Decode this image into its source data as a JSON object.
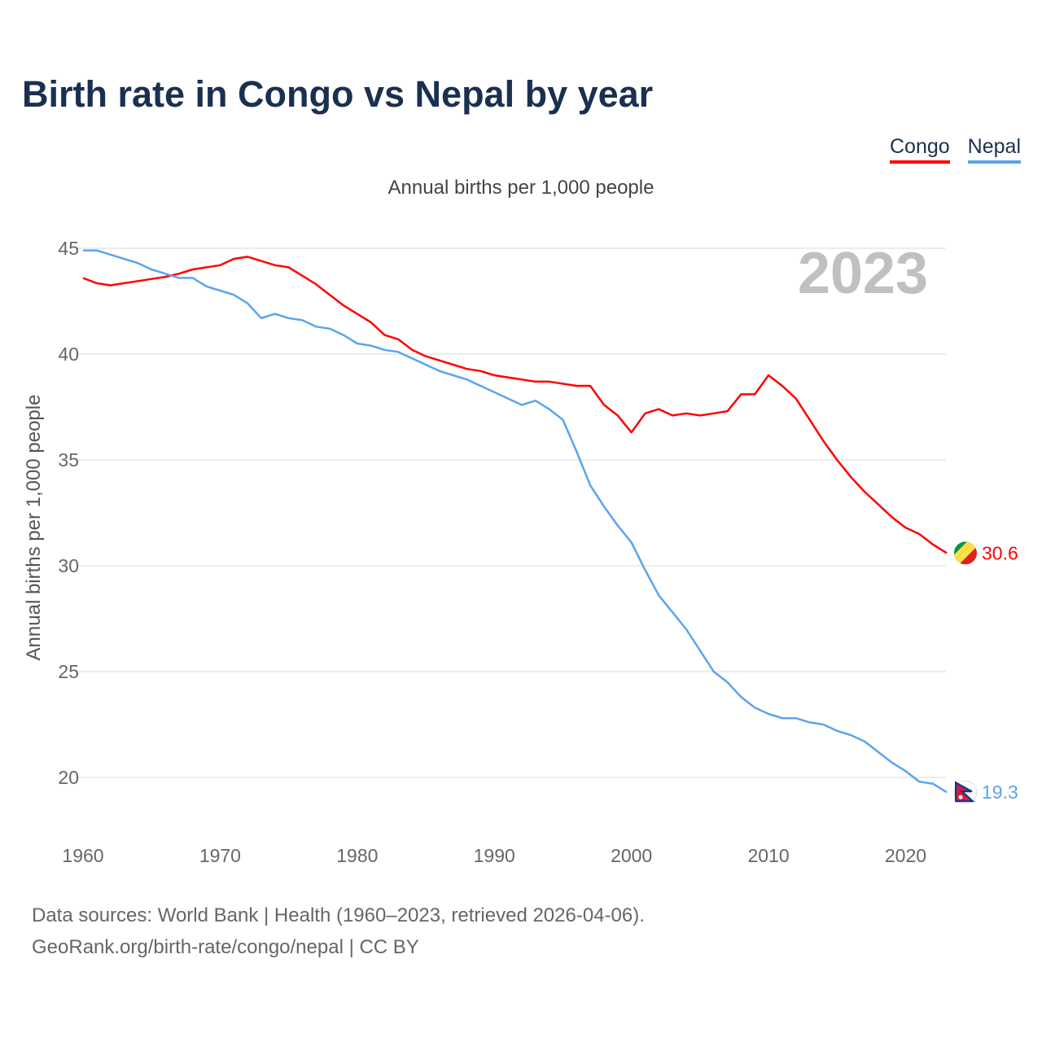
{
  "title": "Birth rate in Congo vs Nepal by year",
  "footer": {
    "line1": "Data sources: World Bank | Health (1960–2023, retrieved 2026-04-06).",
    "line2": "GeoRank.org/birth-rate/congo/nepal | CC BY"
  },
  "chart_data": {
    "type": "line",
    "title": "Birth rate in Congo vs Nepal by year",
    "subtitle": "Annual births per 1,000 people",
    "ylabel": "Annual births per 1,000 people",
    "xlabel": "",
    "year_badge": "2023",
    "xlim": [
      1960,
      2023
    ],
    "ylim": [
      17.5,
      46
    ],
    "xticks": [
      1960,
      1970,
      1980,
      1990,
      2000,
      2010,
      2020
    ],
    "yticks": [
      20,
      25,
      30,
      35,
      40,
      45
    ],
    "grid": true,
    "legend_position": "top-right",
    "x": [
      1960,
      1961,
      1962,
      1963,
      1964,
      1965,
      1966,
      1967,
      1968,
      1969,
      1970,
      1971,
      1972,
      1973,
      1974,
      1975,
      1976,
      1977,
      1978,
      1979,
      1980,
      1981,
      1982,
      1983,
      1984,
      1985,
      1986,
      1987,
      1988,
      1989,
      1990,
      1991,
      1992,
      1993,
      1994,
      1995,
      1996,
      1997,
      1998,
      1999,
      2000,
      2001,
      2002,
      2003,
      2004,
      2005,
      2006,
      2007,
      2008,
      2009,
      2010,
      2011,
      2012,
      2013,
      2014,
      2015,
      2016,
      2017,
      2018,
      2019,
      2020,
      2021,
      2022,
      2023
    ],
    "series": [
      {
        "name": "Congo",
        "color": "#ff0000",
        "end_label": "30.6",
        "values": [
          43.6,
          43.35,
          43.25,
          43.35,
          43.45,
          43.55,
          43.65,
          43.8,
          44.0,
          44.1,
          44.2,
          44.5,
          44.6,
          44.4,
          44.2,
          44.1,
          43.7,
          43.3,
          42.8,
          42.3,
          41.9,
          41.5,
          40.9,
          40.7,
          40.2,
          39.9,
          39.7,
          39.5,
          39.3,
          39.2,
          39.0,
          38.9,
          38.8,
          38.7,
          38.7,
          38.6,
          38.5,
          38.5,
          37.6,
          37.1,
          36.3,
          37.2,
          37.4,
          37.1,
          37.2,
          37.1,
          37.2,
          37.3,
          38.1,
          38.1,
          39.0,
          38.5,
          37.9,
          36.9,
          35.9,
          35.0,
          34.2,
          33.5,
          32.9,
          32.3,
          31.8,
          31.5,
          31.0,
          30.6
        ]
      },
      {
        "name": "Nepal",
        "color": "#5ba4ee",
        "end_label": "19.3",
        "values": [
          44.9,
          44.9,
          44.7,
          44.5,
          44.3,
          44.0,
          43.8,
          43.6,
          43.6,
          43.2,
          43.0,
          42.8,
          42.4,
          41.7,
          41.9,
          41.7,
          41.6,
          41.3,
          41.2,
          40.9,
          40.5,
          40.4,
          40.2,
          40.1,
          39.8,
          39.5,
          39.2,
          39.0,
          38.8,
          38.5,
          38.2,
          37.9,
          37.6,
          37.8,
          37.4,
          36.9,
          35.4,
          33.8,
          32.8,
          31.9,
          31.1,
          29.8,
          28.6,
          27.8,
          27.0,
          26.0,
          25.0,
          24.5,
          23.8,
          23.3,
          23.0,
          22.8,
          22.8,
          22.6,
          22.5,
          22.2,
          22.0,
          21.7,
          21.2,
          20.7,
          20.3,
          19.8,
          19.7,
          19.3
        ]
      }
    ]
  }
}
